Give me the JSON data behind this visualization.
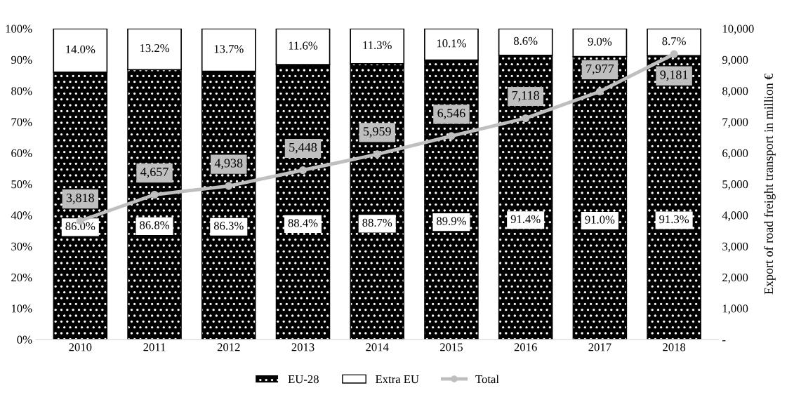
{
  "chart_data": {
    "type": "bar",
    "stacked": true,
    "categories": [
      "2010",
      "2011",
      "2012",
      "2013",
      "2014",
      "2015",
      "2016",
      "2017",
      "2018"
    ],
    "series": [
      {
        "name": "EU-28",
        "color": "#000000",
        "values": [
          86.0,
          86.8,
          86.3,
          88.4,
          88.7,
          89.9,
          91.4,
          91.0,
          91.3
        ],
        "value_labels": [
          "86.0%",
          "86.8%",
          "86.3%",
          "88.4%",
          "88.7%",
          "89.9%",
          "91.4%",
          "91.0%",
          "91.3%"
        ]
      },
      {
        "name": "Extra EU",
        "color": "#ffffff",
        "values": [
          14.0,
          13.2,
          13.7,
          11.6,
          11.3,
          10.1,
          8.6,
          9.0,
          8.7
        ],
        "value_labels": [
          "14.0%",
          "13.2%",
          "13.7%",
          "11.6%",
          "11.3%",
          "10.1%",
          "8.6%",
          "9.0%",
          "8.7%"
        ]
      },
      {
        "name": "Total",
        "type": "line",
        "axis": "y2",
        "color": "#bfbfbf",
        "marker": "circle",
        "values": [
          3818,
          4657,
          4938,
          5448,
          5959,
          6546,
          7118,
          7977,
          9181
        ],
        "value_labels": [
          "3,818",
          "4,657",
          "4,938",
          "5,448",
          "5,959",
          "6,546",
          "7,118",
          "7,977",
          "9,181"
        ]
      }
    ],
    "ylim": [
      0,
      100
    ],
    "yticks": [
      {
        "value": 0,
        "label": "0%"
      },
      {
        "value": 10,
        "label": "10%"
      },
      {
        "value": 20,
        "label": "20%"
      },
      {
        "value": 30,
        "label": "30%"
      },
      {
        "value": 40,
        "label": "40%"
      },
      {
        "value": 50,
        "label": "50%"
      },
      {
        "value": 60,
        "label": "60%"
      },
      {
        "value": 70,
        "label": "70%"
      },
      {
        "value": 80,
        "label": "80%"
      },
      {
        "value": 90,
        "label": "90%"
      },
      {
        "value": 100,
        "label": "100%"
      }
    ],
    "y2lim": [
      0,
      10000
    ],
    "y2ticks": [
      {
        "value": 0,
        "label": "-"
      },
      {
        "value": 1000,
        "label": "1,000"
      },
      {
        "value": 2000,
        "label": "2,000"
      },
      {
        "value": 3000,
        "label": "3,000"
      },
      {
        "value": 4000,
        "label": "4,000"
      },
      {
        "value": 5000,
        "label": "5,000"
      },
      {
        "value": 6000,
        "label": "6,000"
      },
      {
        "value": 7000,
        "label": "7,000"
      },
      {
        "value": 8000,
        "label": "8,000"
      },
      {
        "value": 9000,
        "label": "9,000"
      },
      {
        "value": 10000,
        "label": "10,000"
      }
    ],
    "y2label": "Export of road freight transport in million €",
    "legend": "bottom",
    "grid": false
  }
}
